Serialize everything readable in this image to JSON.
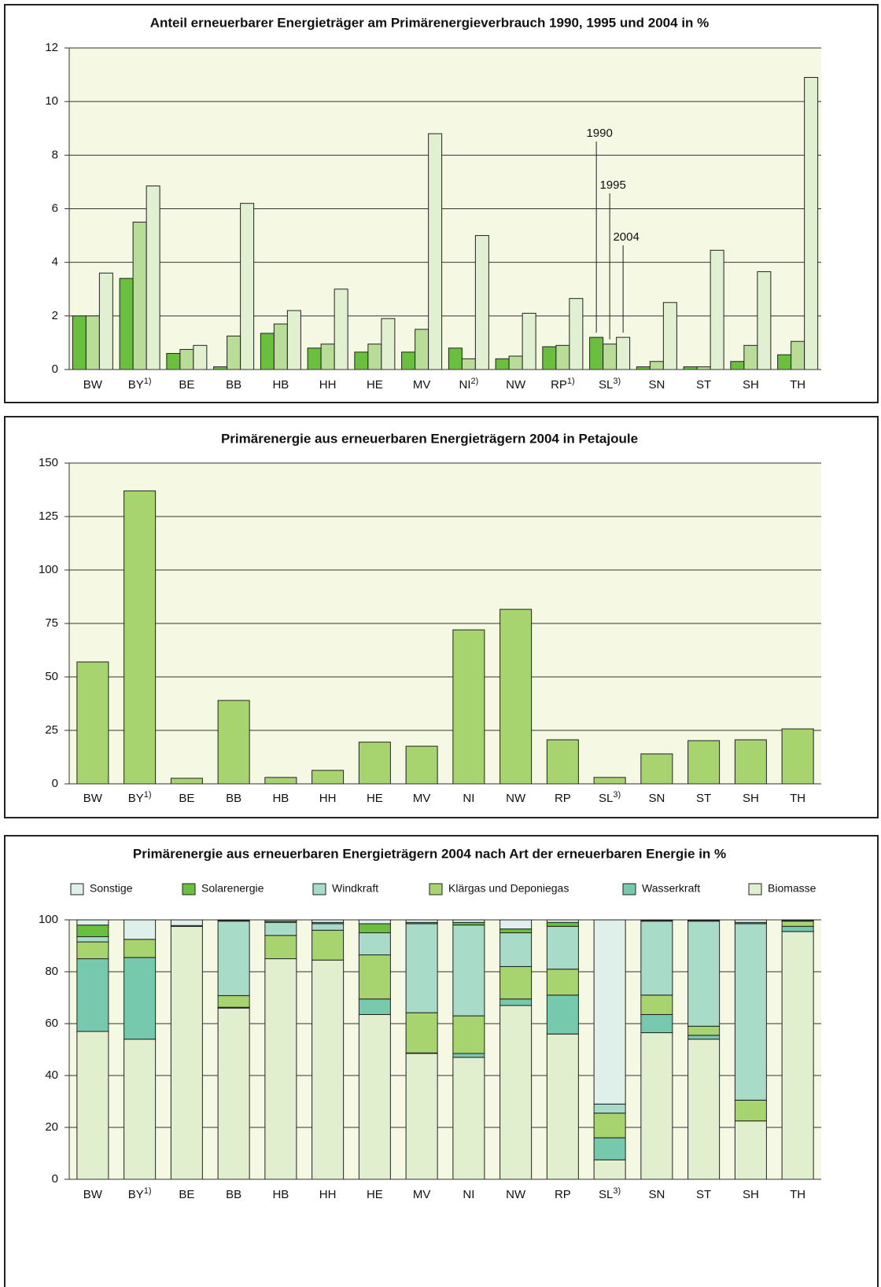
{
  "chart_data": [
    {
      "type": "bar",
      "title": "Anteil erneuerbarer Energieträger am Primärenergieverbrauch 1990, 1995 und 2004 in %",
      "categories": [
        "BW",
        "BY1)",
        "BE",
        "BB",
        "HB",
        "HH",
        "HE",
        "MV",
        "NI2)",
        "NW",
        "RP1)",
        "SL3)",
        "SN",
        "ST",
        "SH",
        "TH"
      ],
      "series": [
        {
          "name": "1990",
          "color": "#6abf3f",
          "values": [
            2.0,
            3.4,
            0.6,
            0.1,
            1.35,
            0.8,
            0.65,
            0.65,
            0.8,
            0.4,
            0.85,
            1.2,
            0.1,
            0.1,
            0.3,
            0.55
          ]
        },
        {
          "name": "1995",
          "color": "#b9dc98",
          "values": [
            2.0,
            5.5,
            0.75,
            1.25,
            1.7,
            0.95,
            0.95,
            1.5,
            0.4,
            0.5,
            0.9,
            0.95,
            0.3,
            0.1,
            0.9,
            1.05
          ]
        },
        {
          "name": "2004",
          "color": "#e2f0d2",
          "values": [
            3.6,
            6.85,
            0.9,
            6.2,
            2.2,
            3.0,
            1.9,
            8.8,
            5.0,
            2.1,
            2.65,
            1.2,
            2.5,
            4.45,
            3.65,
            10.9
          ]
        }
      ],
      "ylim": [
        0,
        12
      ],
      "yticks": [
        0,
        2,
        4,
        6,
        8,
        10,
        12
      ],
      "grid": true
    },
    {
      "type": "bar",
      "title": "Primärenergie aus erneuerbaren Energieträgern 2004 in Petajoule",
      "categories": [
        "BW",
        "BY1)",
        "BE",
        "BB",
        "HB",
        "HH",
        "HE",
        "MV",
        "NI",
        "NW",
        "RP",
        "SL3)",
        "SN",
        "ST",
        "SH",
        "TH"
      ],
      "series": [
        {
          "color": "#a8d46f",
          "values": [
            57,
            137,
            2.6,
            39,
            3,
            6.3,
            19.5,
            17.6,
            72,
            81.6,
            20.6,
            3,
            14,
            20.2,
            20.6,
            25.7
          ]
        }
      ],
      "ylim": [
        0,
        150
      ],
      "yticks": [
        0,
        25,
        50,
        75,
        100,
        125,
        150
      ],
      "grid": true
    },
    {
      "type": "stacked_bar",
      "title": "Primärenergie aus erneuerbaren Energieträgern 2004 nach Art der erneuerbaren Energie in %",
      "categories": [
        "BW",
        "BY1)",
        "BE",
        "BB",
        "HB",
        "HH",
        "HE",
        "MV",
        "NI",
        "NW",
        "RP",
        "SL3)",
        "SN",
        "ST",
        "SH",
        "TH"
      ],
      "series": [
        {
          "name": "Biomasse",
          "color": "#e1efcf",
          "values": [
            57,
            54,
            97.5,
            66,
            85,
            84.5,
            63.5,
            48.5,
            47,
            67,
            56,
            7.5,
            56.5,
            54,
            22.5,
            95.5
          ]
        },
        {
          "name": "Wasserkraft",
          "color": "#76c9ad",
          "values": [
            28,
            31.5,
            0,
            0.3,
            0,
            0,
            6,
            0.2,
            1.5,
            2.5,
            15,
            8.5,
            7,
            1.5,
            0,
            2
          ]
        },
        {
          "name": "Klärgas und Deponiegas",
          "color": "#a8d46f",
          "values": [
            6.5,
            7,
            0,
            4.5,
            9,
            11.5,
            17,
            15.5,
            14.5,
            12.5,
            10,
            9.5,
            7.5,
            3.5,
            8,
            2
          ]
        },
        {
          "name": "Windkraft",
          "color": "#a8dbc8",
          "values": [
            2,
            0,
            0,
            28.7,
            5,
            2.5,
            8.5,
            34.3,
            35,
            13,
            16.5,
            3.5,
            28.5,
            40.5,
            68,
            0
          ]
        },
        {
          "name": "Solarenergie",
          "color": "#6abf3f",
          "values": [
            4.5,
            0,
            0.3,
            0.3,
            0.5,
            0.5,
            3.5,
            0.5,
            1,
            1.5,
            1.5,
            0,
            0.2,
            0.3,
            0.5,
            0.3
          ]
        },
        {
          "name": "Sonstige",
          "color": "#dff0ea",
          "values": [
            2,
            7.5,
            2.2,
            0.2,
            0.5,
            1,
            1.5,
            1,
            1,
            3.5,
            1,
            71,
            0.3,
            0.2,
            1,
            0.2
          ]
        }
      ],
      "legend_order": [
        "Sonstige",
        "Solarenergie",
        "Windkraft",
        "Klärgas und Deponiegas",
        "Wasserkraft",
        "Biomasse"
      ],
      "ylim": [
        0,
        100
      ],
      "yticks": [
        0,
        20,
        40,
        60,
        80,
        100
      ],
      "grid": true
    }
  ]
}
